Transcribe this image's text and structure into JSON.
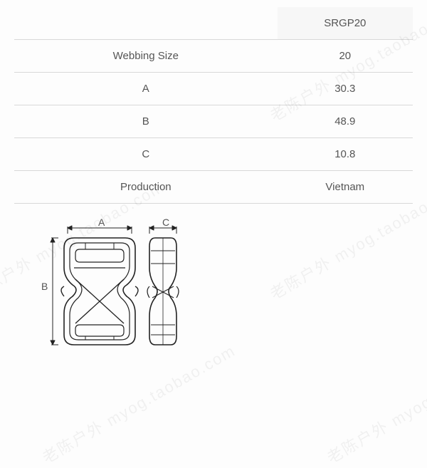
{
  "table": {
    "border_color": "#d8d8d8",
    "header_bg": "#f7f7f7",
    "header_label": "SRGP20",
    "rows": [
      {
        "label": "Webbing Size",
        "value": "20"
      },
      {
        "label": "A",
        "value": "30.3"
      },
      {
        "label": "B",
        "value": "48.9"
      },
      {
        "label": "C",
        "value": "10.8"
      },
      {
        "label": "Production",
        "value": "Vietnam"
      }
    ]
  },
  "diagram": {
    "labels": {
      "A": "A",
      "B": "B",
      "C": "C"
    },
    "stroke": "#222222",
    "stroke_width": 1.5
  },
  "watermark": {
    "text": "老陈户外  myog.taobao.com",
    "color": "rgba(0,0,0,0.045)"
  }
}
